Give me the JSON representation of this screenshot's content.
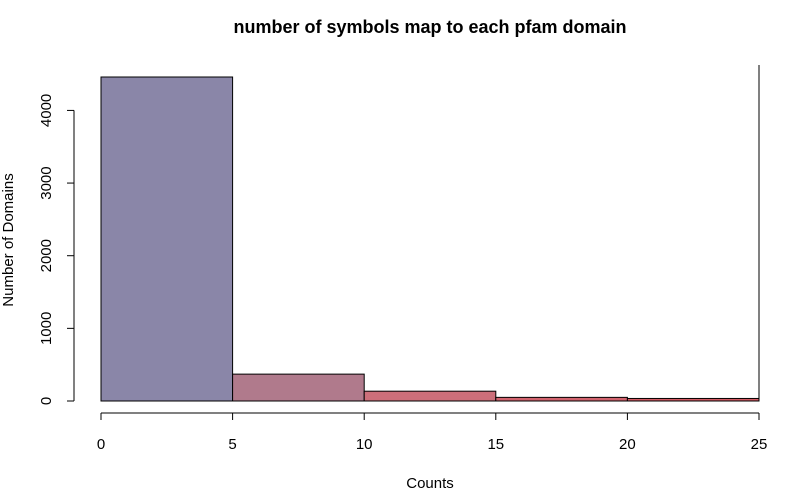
{
  "chart_data": {
    "type": "bar",
    "title": "number of symbols map to each pfam domain",
    "xlabel": "Counts",
    "ylabel": "Number of Domains",
    "bins": [
      {
        "start": 0,
        "end": 5,
        "value": 4460,
        "color": "#8a86a8"
      },
      {
        "start": 5,
        "end": 10,
        "value": 370,
        "color": "#b07a8c"
      },
      {
        "start": 10,
        "end": 15,
        "value": 135,
        "color": "#cc6f7a"
      },
      {
        "start": 15,
        "end": 20,
        "value": 50,
        "color": "#d2636e"
      },
      {
        "start": 20,
        "end": 25,
        "value": 35,
        "color": "#d45a63"
      }
    ],
    "xlim": [
      0,
      25
    ],
    "ylim": [
      0,
      4460
    ],
    "xticks": [
      0,
      5,
      10,
      15,
      20,
      25
    ],
    "yticks": [
      0,
      1000,
      2000,
      3000,
      4000
    ],
    "grid": false
  }
}
